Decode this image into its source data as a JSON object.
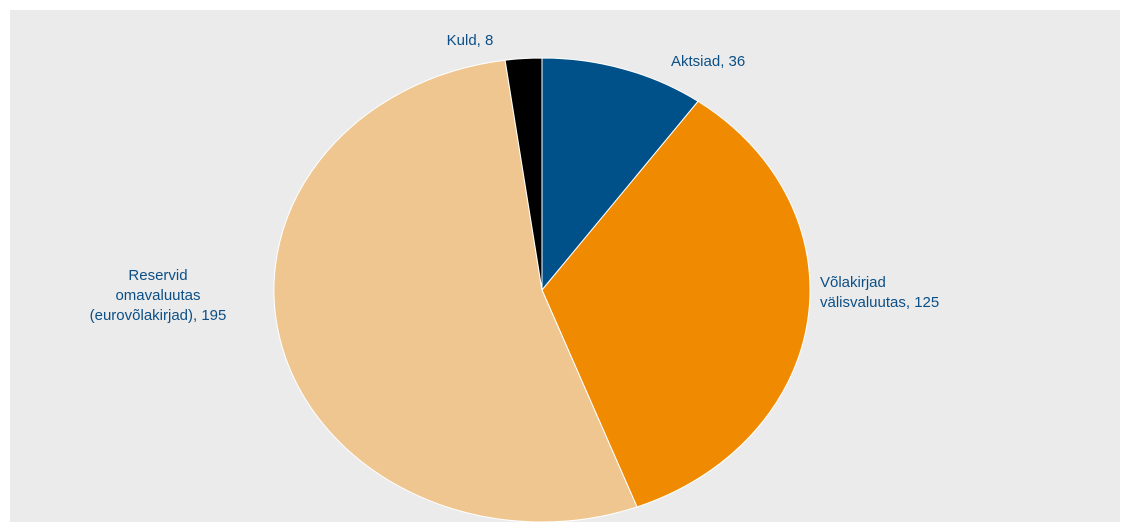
{
  "chart_data": {
    "type": "pie",
    "title": "",
    "slices": [
      {
        "label": "Aktsiad",
        "value": 36,
        "color": "#00508a",
        "display": "Aktsiad, 36"
      },
      {
        "label": "Võlakirjad välisvaluutas",
        "value": 125,
        "color": "#f08a00",
        "display": "Võlakirjad\nvälisvaluutas, 125"
      },
      {
        "label": "Reservid omavaluutas (eurovõlakirjad)",
        "value": 195,
        "color": "#efc690",
        "display": "Reservid\nomavaluutas\n(eurovõlakirjad), 195"
      },
      {
        "label": "Kuld",
        "value": 8,
        "color": "#000000",
        "display": "Kuld, 8"
      }
    ],
    "start_angle_deg": 0,
    "direction": "clockwise",
    "label_color": "#0b4f86",
    "background_color": "#ebebeb",
    "legend": "none"
  }
}
